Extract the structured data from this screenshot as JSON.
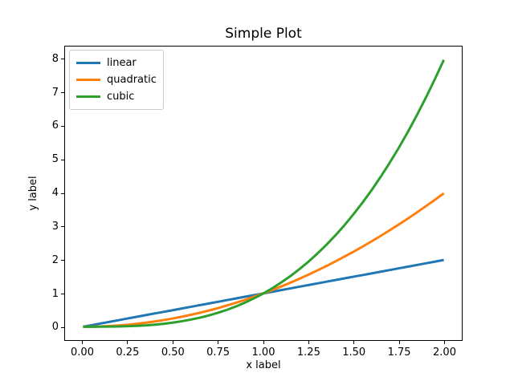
{
  "figure": {
    "background": "#ffffff",
    "spine_color": "#000000",
    "text_color": "#000000"
  },
  "chart_data": {
    "type": "line",
    "title": "Simple Plot",
    "xlabel": "x label",
    "ylabel": "y label",
    "xlim": [
      -0.1,
      2.1
    ],
    "ylim": [
      -0.4,
      8.4
    ],
    "grid": false,
    "line_width": 3,
    "x_ticks": {
      "values": [
        0,
        0.25,
        0.5,
        0.75,
        1.0,
        1.25,
        1.5,
        1.75,
        2.0
      ],
      "labels": [
        "0.00",
        "0.25",
        "0.50",
        "0.75",
        "1.00",
        "1.25",
        "1.50",
        "1.75",
        "2.00"
      ]
    },
    "y_ticks": {
      "values": [
        0,
        1,
        2,
        3,
        4,
        5,
        6,
        7,
        8
      ],
      "labels": [
        "0",
        "1",
        "2",
        "3",
        "4",
        "5",
        "6",
        "7",
        "8"
      ]
    },
    "x": [
      0,
      0.05,
      0.1,
      0.15,
      0.2,
      0.25,
      0.3,
      0.35,
      0.4,
      0.45,
      0.5,
      0.55,
      0.6,
      0.65,
      0.7,
      0.75,
      0.8,
      0.85,
      0.9,
      0.95,
      1,
      1.05,
      1.1,
      1.15,
      1.2,
      1.25,
      1.3,
      1.35,
      1.4,
      1.45,
      1.5,
      1.55,
      1.6,
      1.65,
      1.7,
      1.75,
      1.8,
      1.85,
      1.9,
      1.95,
      2
    ],
    "series": [
      {
        "name": "linear",
        "color": "#1f77b4",
        "values": [
          0,
          0.05,
          0.1,
          0.15,
          0.2,
          0.25,
          0.3,
          0.35,
          0.4,
          0.45,
          0.5,
          0.55,
          0.6,
          0.65,
          0.7,
          0.75,
          0.8,
          0.85,
          0.9,
          0.95,
          1,
          1.05,
          1.1,
          1.15,
          1.2,
          1.25,
          1.3,
          1.35,
          1.4,
          1.45,
          1.5,
          1.55,
          1.6,
          1.65,
          1.7,
          1.75,
          1.8,
          1.85,
          1.9,
          1.95,
          2
        ]
      },
      {
        "name": "quadratic",
        "color": "#ff7f0e",
        "values": [
          0,
          0.0025,
          0.01,
          0.0225,
          0.04,
          0.0625,
          0.09,
          0.1225,
          0.16,
          0.2025,
          0.25,
          0.3025,
          0.36,
          0.4225,
          0.49,
          0.5625,
          0.64,
          0.7225,
          0.81,
          0.9025,
          1,
          1.1025,
          1.21,
          1.3225,
          1.44,
          1.5625,
          1.69,
          1.8225,
          1.96,
          2.1025,
          2.25,
          2.4025,
          2.56,
          2.7225,
          2.89,
          3.0625,
          3.24,
          3.4225,
          3.61,
          3.8025,
          4
        ]
      },
      {
        "name": "cubic",
        "color": "#2ca02c",
        "values": [
          0,
          0.0001,
          0.001,
          0.0034,
          0.008,
          0.0156,
          0.027,
          0.0429,
          0.064,
          0.0911,
          0.125,
          0.1664,
          0.216,
          0.2746,
          0.343,
          0.4219,
          0.512,
          0.6141,
          0.729,
          0.8574,
          1,
          1.1576,
          1.331,
          1.5209,
          1.728,
          1.9531,
          2.197,
          2.4604,
          2.744,
          3.0486,
          3.375,
          3.7239,
          4.096,
          4.4921,
          4.913,
          5.3594,
          5.832,
          6.3316,
          6.859,
          7.4149,
          8
        ]
      }
    ],
    "legend": {
      "position": "upper left",
      "border_color": "#cccccc",
      "background": "#ffffff",
      "entries": [
        "linear",
        "quadratic",
        "cubic"
      ]
    }
  }
}
